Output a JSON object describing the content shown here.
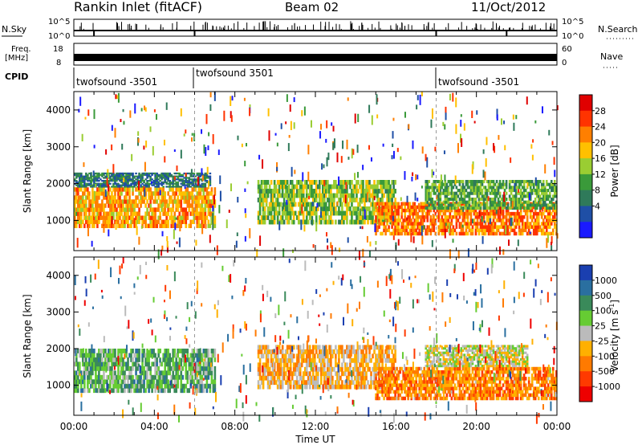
{
  "header": {
    "station": "Rankin Inlet (fitACF)",
    "beam": "Beam 02",
    "date": "11/Oct/2012"
  },
  "strip_labels": {
    "nsky": "N.Sky",
    "nsearch": "N.Search",
    "freq": "Freq.",
    "freq_unit": "[MHz]",
    "nave": "Nave",
    "cpid": "CPID",
    "log_max": "10^5",
    "log_min": "10^0",
    "freq_max": "18",
    "freq_min": "8",
    "nave_max": "60",
    "nave_min": "0"
  },
  "cpid_segments": [
    {
      "label": "twofsound -3501",
      "start_hour": 0
    },
    {
      "label": "twofsound 3501",
      "start_hour": 6
    },
    {
      "label": "twofsound -3501",
      "start_hour": 18
    }
  ],
  "colorbars": {
    "power": {
      "label": "Power [dB]",
      "ticks": [
        "4",
        "8",
        "12",
        "16",
        "20",
        "24",
        "28"
      ]
    },
    "velocity": {
      "label": "Velocity [m s",
      "label_sup": "-1",
      "label_end": "]",
      "ticks": [
        "1000",
        "500",
        "100",
        "25",
        "-25",
        "-100",
        "-500",
        "-1000"
      ]
    }
  },
  "colors": {
    "power_scale": [
      "#1a1aff",
      "#1f4fa6",
      "#2f7a5a",
      "#3a9a3a",
      "#9acd32",
      "#ffc000",
      "#ff7f00",
      "#ff3300",
      "#e00000"
    ],
    "velocity_scale": [
      "#1a3fb0",
      "#2a6fa0",
      "#3a8a5a",
      "#66cc33",
      "#bbbbbb",
      "#ffb000",
      "#ff7a00",
      "#ff3a00",
      "#ee0000"
    ]
  },
  "chart_data": [
    {
      "type": "heatmap",
      "title": "Power",
      "ylabel": "Slant Range [km]",
      "xlabel": "Time UT",
      "x_ticks": [
        "00:00",
        "04:00",
        "08:00",
        "12:00",
        "16:00",
        "20:00",
        "00:00"
      ],
      "xlim_hours": [
        0,
        24
      ],
      "ylim_km": [
        180,
        4500
      ],
      "y_ticks": [
        1000,
        2000,
        3000,
        4000
      ],
      "colorbar": "Power [dB]",
      "clim_db": [
        0,
        30
      ],
      "echo_regions": [
        {
          "t_start": 0.0,
          "t_end": 7.0,
          "r_min": 800,
          "r_max": 1900,
          "value_db": 20
        },
        {
          "t_start": 0.0,
          "t_end": 6.8,
          "r_min": 1900,
          "r_max": 2300,
          "value_db": 8
        },
        {
          "t_start": 9.2,
          "t_end": 16.0,
          "r_min": 900,
          "r_max": 2100,
          "value_db": 14
        },
        {
          "t_start": 15.0,
          "t_end": 24.0,
          "r_min": 600,
          "r_max": 1500,
          "value_db": 22
        },
        {
          "t_start": 17.5,
          "t_end": 24.0,
          "r_min": 1300,
          "r_max": 2100,
          "value_db": 12
        }
      ]
    },
    {
      "type": "heatmap",
      "title": "Velocity",
      "ylabel": "Slant Range [km]",
      "xlabel": "Time UT",
      "x_ticks": [
        "00:00",
        "04:00",
        "08:00",
        "12:00",
        "16:00",
        "20:00",
        "00:00"
      ],
      "xlim_hours": [
        0,
        24
      ],
      "ylim_km": [
        180,
        4500
      ],
      "y_ticks": [
        1000,
        2000,
        3000,
        4000
      ],
      "colorbar": "Velocity [m s-1]",
      "clim_ms": [
        -1000,
        1000
      ],
      "echo_regions": [
        {
          "t_start": 0.0,
          "t_end": 7.0,
          "r_min": 800,
          "r_max": 2000,
          "value_ms": 300
        },
        {
          "t_start": 9.2,
          "t_end": 16.0,
          "r_min": 900,
          "r_max": 2100,
          "value_ms": -200
        },
        {
          "t_start": 15.0,
          "t_end": 24.0,
          "r_min": 600,
          "r_max": 1500,
          "value_ms": -400
        },
        {
          "t_start": 17.5,
          "t_end": 22.5,
          "r_min": 1500,
          "r_max": 2100,
          "value_ms": 0
        }
      ]
    }
  ]
}
